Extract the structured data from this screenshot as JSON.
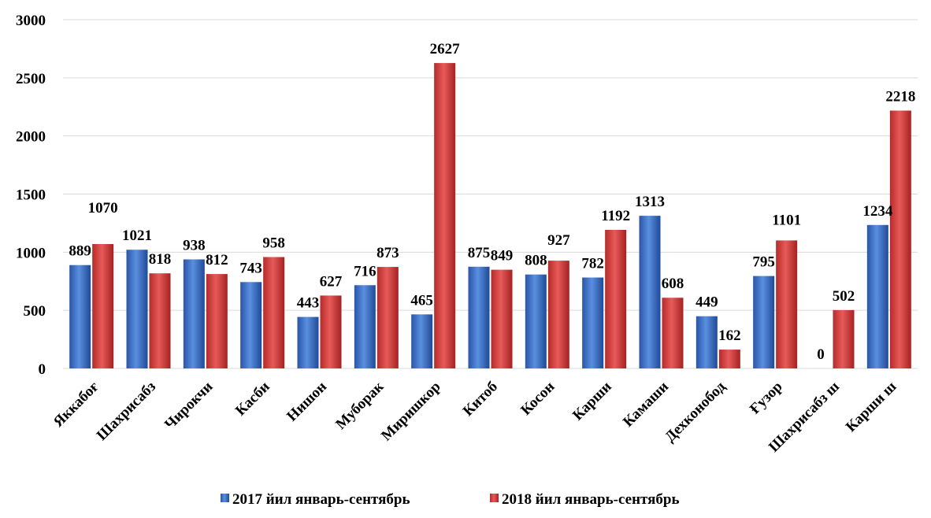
{
  "chart_data": {
    "type": "bar",
    "title": "",
    "xlabel": "",
    "ylabel": "",
    "ylim": [
      0,
      3000
    ],
    "yticks": [
      0,
      500,
      1000,
      1500,
      2000,
      2500,
      3000
    ],
    "grid": true,
    "legend_position": "bottom",
    "categories": [
      "Яккабоғ",
      "Шахрисабз",
      "Чирокчи",
      "Касби",
      "Нишон",
      "Муборак",
      "Миришкор",
      "Китоб",
      "Косон",
      "Карши",
      "Камаши",
      "Дехконобод",
      "Ғузор",
      "Шахрисабз ш",
      "Карши ш"
    ],
    "series": [
      {
        "name": "2017 йил январь-сентябрь",
        "color": "#3a6fc4",
        "values": [
          889,
          1021,
          938,
          743,
          443,
          716,
          465,
          875,
          808,
          782,
          1313,
          449,
          795,
          0,
          1234
        ]
      },
      {
        "name": "2018 йил январь-сентябрь",
        "color": "#d03838",
        "values": [
          1070,
          818,
          812,
          958,
          627,
          873,
          2627,
          849,
          927,
          1192,
          608,
          162,
          1101,
          502,
          2218
        ]
      }
    ]
  }
}
